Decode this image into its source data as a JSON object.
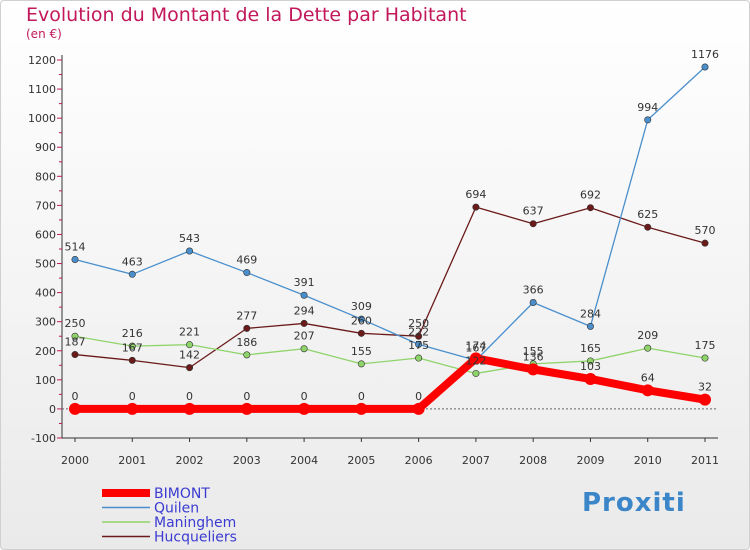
{
  "chart_data": {
    "type": "line",
    "title": "Evolution du Montant de la Dette par Habitant",
    "subtitle": "(en €)",
    "x": [
      "2000",
      "2001",
      "2002",
      "2003",
      "2004",
      "2005",
      "2006",
      "2007",
      "2008",
      "2009",
      "2010",
      "2011"
    ],
    "ylim": [
      -100,
      1200
    ],
    "yticks": [
      -100,
      0,
      100,
      200,
      300,
      400,
      500,
      600,
      700,
      800,
      900,
      1000,
      1100,
      1200
    ],
    "grid": false,
    "legend": "bottom-left",
    "series": [
      {
        "name": "Hucqueliers",
        "color": "#6b1a1a",
        "values": [
          187,
          167,
          142,
          277,
          294,
          260,
          250,
          694,
          637,
          692,
          625,
          570
        ],
        "labels": [
          "187",
          "167",
          "142",
          "277",
          "294",
          "260",
          "250",
          "694",
          "637",
          "692",
          "625",
          "570"
        ]
      },
      {
        "name": "Maninghem",
        "color": "#8fd46a",
        "values": [
          250,
          216,
          221,
          186,
          207,
          155,
          175,
          122,
          155,
          165,
          209,
          175
        ],
        "labels": [
          "250",
          "216",
          "221",
          "186",
          "207",
          "155",
          "175",
          "122",
          "155",
          "165",
          "209",
          "175"
        ]
      },
      {
        "name": "Quilen",
        "color": "#4a8fcc",
        "values": [
          514,
          463,
          543,
          469,
          391,
          309,
          222,
          167,
          366,
          284,
          994,
          1176
        ],
        "labels": [
          "514",
          "463",
          "543",
          "469",
          "391",
          "309",
          "222",
          "167",
          "366",
          "284",
          "994",
          "1176"
        ]
      },
      {
        "name": "BIMONT",
        "color": "#ff0000",
        "values": [
          0,
          0,
          0,
          0,
          0,
          0,
          0,
          174,
          136,
          103,
          64,
          32
        ],
        "labels": [
          "0",
          "0",
          "0",
          "0",
          "0",
          "0",
          "0",
          "174",
          "136",
          "103",
          "64",
          "32"
        ]
      }
    ]
  },
  "brand": {
    "logo_text": "Proxiti"
  }
}
